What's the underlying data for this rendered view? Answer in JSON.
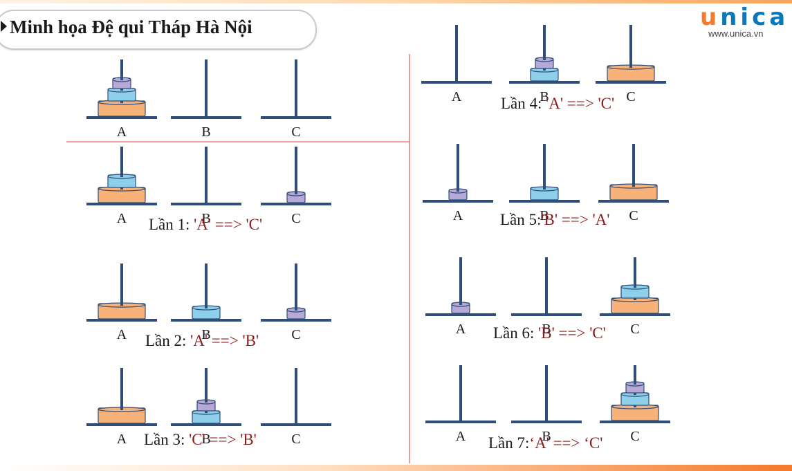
{
  "title": "Minh họa Đệ qui Tháp Hà Nội",
  "logo": {
    "text": "unica",
    "url": "www.unica.vn"
  },
  "colors": {
    "rod": "#2f4e7a",
    "disk_large": "#f7b27a",
    "disk_large_stroke": "#2f4e7a",
    "disk_medium": "#8ecfea",
    "disk_small": "#b7a9d6",
    "divider": "#e06b5b",
    "move_text": "#8b1a1a"
  },
  "peg_labels": [
    "A",
    "B",
    "C"
  ],
  "states": [
    {
      "label": "",
      "move": "",
      "pegs": [
        [
          "large",
          "medium",
          "small"
        ],
        [],
        []
      ]
    },
    {
      "label": "Lần 1: ",
      "move": "'A' ==> 'C'",
      "pegs": [
        [
          "large",
          "medium"
        ],
        [],
        [
          "small"
        ]
      ]
    },
    {
      "label": "Lần 2: ",
      "move": "'A' ==> 'B'",
      "pegs": [
        [
          "large"
        ],
        [
          "medium"
        ],
        [
          "small"
        ]
      ]
    },
    {
      "label": "Lần 3: ",
      "move": "'C' ==> 'B'",
      "pegs": [
        [
          "large"
        ],
        [
          "medium",
          "small"
        ],
        []
      ]
    },
    {
      "label": "Lần 4: ",
      "move": "'A' ==> 'C'",
      "pegs": [
        [],
        [
          "medium",
          "small"
        ],
        [
          "large"
        ]
      ]
    },
    {
      "label": "Lần 5:",
      "move": "'B' ==> 'A'",
      "pegs": [
        [
          "small"
        ],
        [
          "medium"
        ],
        [
          "large"
        ]
      ]
    },
    {
      "label": "Lần 6: ",
      "move": "'B' ==> 'C'",
      "pegs": [
        [
          "small"
        ],
        [],
        [
          "large",
          "medium"
        ]
      ]
    },
    {
      "label": "Lần 7:",
      "move": "‘A' ==> ‘C'",
      "pegs": [
        [],
        [],
        [
          "large",
          "medium",
          "small"
        ]
      ]
    }
  ]
}
